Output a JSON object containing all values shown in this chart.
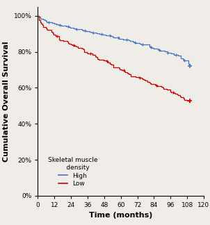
{
  "xlabel": "Time (months)",
  "ylabel": "Cumulative Overall Survival",
  "xlim": [
    0,
    120
  ],
  "ylim": [
    0.0,
    1.05
  ],
  "xticks": [
    0,
    12,
    24,
    36,
    48,
    60,
    72,
    84,
    96,
    108,
    120
  ],
  "yticks": [
    0.0,
    0.2,
    0.4,
    0.6,
    0.8,
    1.0
  ],
  "ytick_labels": [
    "0%",
    "20%",
    "40%",
    "60%",
    "80%",
    "100%"
  ],
  "high_color": "#4472C4",
  "low_color": "#CC0000",
  "legend_title": "Skeletal muscle\n     density",
  "legend_labels": [
    "High",
    "Low"
  ],
  "background_color": "#f0ede8",
  "high_key_times": [
    0,
    2,
    5,
    8,
    12,
    18,
    24,
    30,
    36,
    42,
    48,
    54,
    60,
    66,
    72,
    78,
    84,
    90,
    96,
    100,
    104,
    108,
    110
  ],
  "high_key_probs": [
    1.0,
    0.985,
    0.975,
    0.965,
    0.955,
    0.945,
    0.935,
    0.925,
    0.915,
    0.905,
    0.893,
    0.885,
    0.873,
    0.862,
    0.85,
    0.84,
    0.818,
    0.805,
    0.793,
    0.782,
    0.765,
    0.75,
    0.72
  ],
  "low_key_times": [
    0,
    1,
    3,
    6,
    10,
    15,
    20,
    25,
    30,
    36,
    42,
    48,
    54,
    60,
    66,
    72,
    78,
    84,
    88,
    92,
    96,
    100,
    104,
    108,
    110
  ],
  "low_key_probs": [
    1.0,
    0.975,
    0.955,
    0.935,
    0.91,
    0.885,
    0.86,
    0.84,
    0.82,
    0.795,
    0.772,
    0.75,
    0.728,
    0.7,
    0.678,
    0.658,
    0.64,
    0.62,
    0.608,
    0.592,
    0.578,
    0.565,
    0.548,
    0.53,
    0.52
  ],
  "high_cens_x": [
    8,
    16,
    22,
    28,
    34,
    40,
    46,
    52,
    58,
    64,
    70,
    76,
    82,
    88,
    94,
    100,
    106
  ],
  "low_cens_x": [
    14,
    26,
    38,
    50,
    62,
    74,
    86,
    98
  ],
  "high_seed": 7,
  "low_seed": 15
}
